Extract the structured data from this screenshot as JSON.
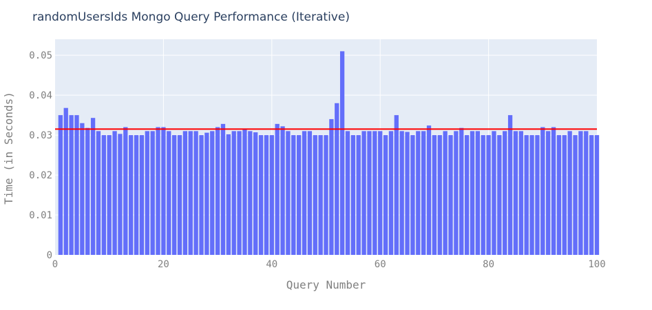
{
  "chart_data": {
    "type": "bar",
    "title": "randomUsersIds Mongo Query Performance (Iterative)",
    "xlabel": "Query Number",
    "ylabel": "Time (in Seconds)",
    "xlim": [
      0,
      100
    ],
    "ylim": [
      0,
      0.054
    ],
    "x_ticks": [
      0,
      20,
      40,
      60,
      80,
      100
    ],
    "y_ticks": [
      0,
      0.01,
      0.02,
      0.03,
      0.04,
      0.05
    ],
    "x_tick_labels": [
      "0",
      "20",
      "40",
      "60",
      "80",
      "100"
    ],
    "y_tick_labels": [
      "0",
      "0.01",
      "0.02",
      "0.03",
      "0.04",
      "0.05"
    ],
    "grid": true,
    "background_color": "#e5ecf6",
    "bar_color": "#636efa",
    "reference_line": {
      "y": 0.0315,
      "color": "#ff0000"
    },
    "x": [
      1,
      2,
      3,
      4,
      5,
      6,
      7,
      8,
      9,
      10,
      11,
      12,
      13,
      14,
      15,
      16,
      17,
      18,
      19,
      20,
      21,
      22,
      23,
      24,
      25,
      26,
      27,
      28,
      29,
      30,
      31,
      32,
      33,
      34,
      35,
      36,
      37,
      38,
      39,
      40,
      41,
      42,
      43,
      44,
      45,
      46,
      47,
      48,
      49,
      50,
      51,
      52,
      53,
      54,
      55,
      56,
      57,
      58,
      59,
      60,
      61,
      62,
      63,
      64,
      65,
      66,
      67,
      68,
      69,
      70,
      71,
      72,
      73,
      74,
      75,
      76,
      77,
      78,
      79,
      80,
      81,
      82,
      83,
      84,
      85,
      86,
      87,
      88,
      89,
      90,
      91,
      92,
      93,
      94,
      95,
      96,
      97,
      98,
      99,
      100
    ],
    "values": [
      0.035,
      0.0368,
      0.035,
      0.035,
      0.033,
      0.0318,
      0.0343,
      0.031,
      0.03,
      0.03,
      0.031,
      0.0303,
      0.032,
      0.03,
      0.03,
      0.03,
      0.031,
      0.031,
      0.032,
      0.032,
      0.031,
      0.03,
      0.03,
      0.031,
      0.031,
      0.031,
      0.03,
      0.0306,
      0.031,
      0.032,
      0.0328,
      0.0302,
      0.031,
      0.031,
      0.0316,
      0.031,
      0.0307,
      0.03,
      0.03,
      0.03,
      0.0328,
      0.0322,
      0.031,
      0.03,
      0.03,
      0.031,
      0.031,
      0.03,
      0.03,
      0.03,
      0.034,
      0.038,
      0.051,
      0.031,
      0.03,
      0.03,
      0.031,
      0.031,
      0.031,
      0.031,
      0.03,
      0.031,
      0.035,
      0.031,
      0.0308,
      0.03,
      0.031,
      0.031,
      0.0324,
      0.03,
      0.03,
      0.031,
      0.03,
      0.031,
      0.0318,
      0.03,
      0.031,
      0.031,
      0.03,
      0.03,
      0.031,
      0.03,
      0.031,
      0.035,
      0.031,
      0.031,
      0.03,
      0.03,
      0.03,
      0.032,
      0.031,
      0.032,
      0.03,
      0.03,
      0.031,
      0.03,
      0.031,
      0.031,
      0.03,
      0.03
    ]
  }
}
